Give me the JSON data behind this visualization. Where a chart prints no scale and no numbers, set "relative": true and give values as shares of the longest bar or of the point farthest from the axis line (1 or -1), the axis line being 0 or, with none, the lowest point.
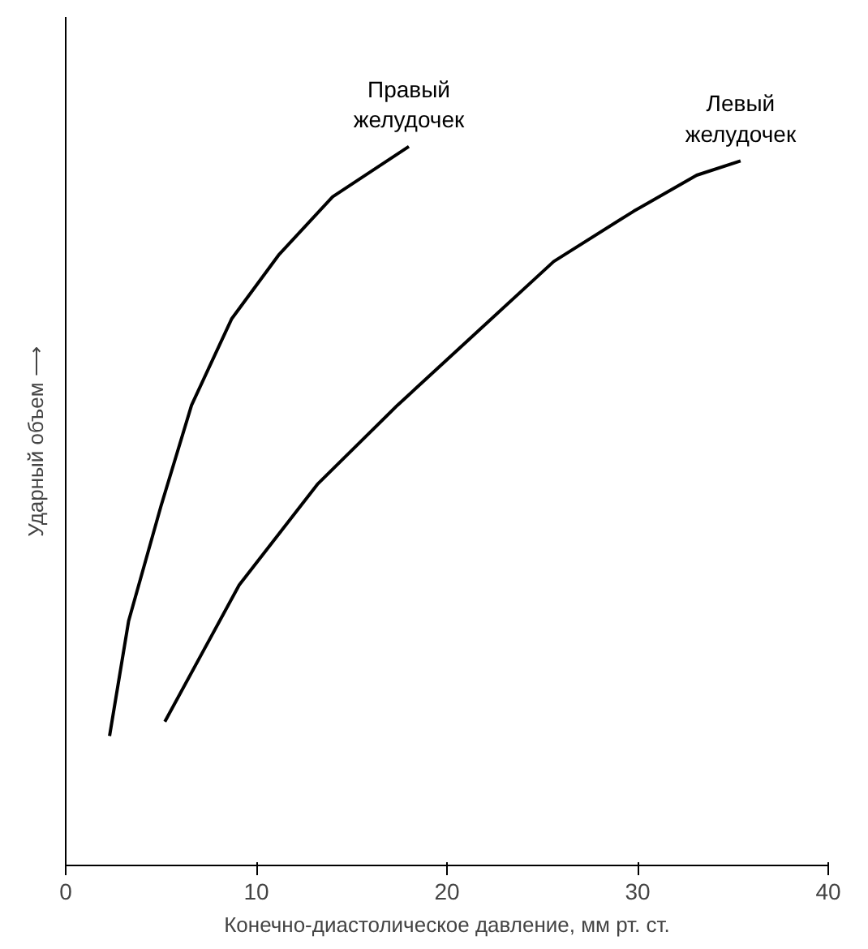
{
  "chart_data": {
    "type": "line",
    "relative": true,
    "xlabel": "Конечно-диастолическое давление, мм рт. ст.",
    "ylabel": "Ударный объем ⟶",
    "xlim": [
      0,
      40
    ],
    "xticks": [
      0,
      10,
      20,
      30,
      40
    ],
    "grid": false,
    "marker": "none",
    "line_style": "solid",
    "series": [
      {
        "name": "Правый желудочек",
        "color": "#000000",
        "x": [
          2.3,
          3.3,
          5.0,
          6.6,
          8.7,
          11.2,
          14.0,
          18.0
        ],
        "values": [
          0.18,
          0.34,
          0.5,
          0.64,
          0.76,
          0.85,
          0.93,
          1.0
        ]
      },
      {
        "name": "Левый желудочек",
        "color": "#000000",
        "x": [
          5.2,
          9.1,
          13.2,
          17.4,
          21.5,
          25.6,
          29.8,
          33.1,
          35.4
        ],
        "values": [
          0.2,
          0.39,
          0.53,
          0.64,
          0.74,
          0.84,
          0.91,
          0.96,
          0.98
        ]
      }
    ]
  }
}
